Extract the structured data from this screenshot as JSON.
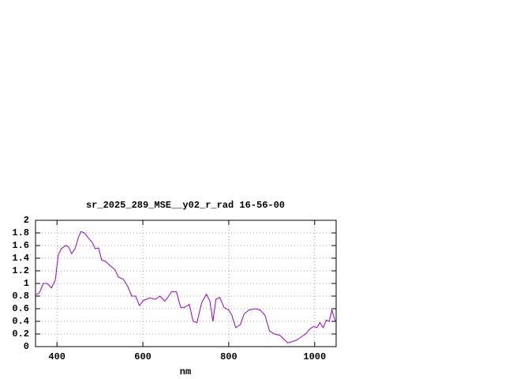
{
  "chart_data": {
    "type": "line",
    "title": "sr_2025_289_MSE__y02_r_rad 16-56-00",
    "x_label": "nm",
    "x": [
      350,
      359,
      368,
      377,
      387,
      396,
      403,
      410,
      420,
      427,
      434,
      442,
      451,
      456,
      464,
      473,
      482,
      489,
      497,
      504,
      513,
      524,
      535,
      543,
      554,
      565,
      574,
      583,
      592,
      601,
      616,
      629,
      640,
      651,
      658,
      667,
      678,
      688,
      697,
      708,
      717,
      726,
      737,
      748,
      756,
      763,
      770,
      779,
      789,
      800,
      807,
      816,
      827,
      836,
      847,
      862,
      873,
      884,
      895,
      906,
      919,
      928,
      937,
      948,
      957,
      968,
      979,
      989,
      998,
      1005,
      1012,
      1020,
      1027,
      1034,
      1040,
      1048
    ],
    "series": [
      {
        "color": "#9400d3",
        "values": [
          0.82,
          0.85,
          1.0,
          1.0,
          0.93,
          1.05,
          1.45,
          1.55,
          1.6,
          1.58,
          1.47,
          1.55,
          1.75,
          1.82,
          1.8,
          1.72,
          1.65,
          1.55,
          1.56,
          1.37,
          1.35,
          1.28,
          1.22,
          1.1,
          1.07,
          0.95,
          0.8,
          0.8,
          0.65,
          0.73,
          0.77,
          0.75,
          0.8,
          0.72,
          0.78,
          0.87,
          0.87,
          0.62,
          0.62,
          0.67,
          0.4,
          0.38,
          0.7,
          0.83,
          0.72,
          0.4,
          0.75,
          0.78,
          0.62,
          0.58,
          0.5,
          0.3,
          0.35,
          0.52,
          0.58,
          0.6,
          0.58,
          0.5,
          0.25,
          0.2,
          0.18,
          0.12,
          0.06,
          0.08,
          0.1,
          0.15,
          0.2,
          0.28,
          0.32,
          0.3,
          0.38,
          0.3,
          0.42,
          0.4,
          0.58,
          0.4
        ]
      }
    ],
    "xlim": [
      350,
      1050
    ],
    "xticks": [
      400,
      600,
      800,
      1000
    ],
    "ylim": [
      0,
      2
    ],
    "yticks": [
      0,
      0.2,
      0.4,
      0.6,
      0.8,
      1,
      1.2,
      1.4,
      1.6,
      1.8,
      2
    ],
    "grid": true
  }
}
